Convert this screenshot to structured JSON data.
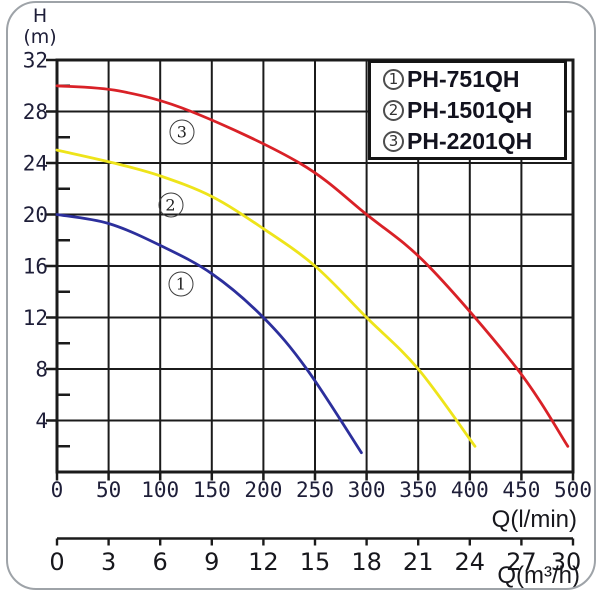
{
  "window": {
    "background": "#ffffff",
    "frame_border_color": "#9ea3a8"
  },
  "chart_data": {
    "type": "line",
    "title": "",
    "ylabel_title": "H",
    "ylabel_unit": "(m)",
    "xlabel_primary": "Q(l/min)",
    "xlabel_secondary": "Q(m³/h)",
    "grid": true,
    "grid_color": "#1b1b1b",
    "tick_text_color": "#1e1e38",
    "y_axis": {
      "unit": "m",
      "min": 0,
      "max": 32,
      "labeled_ticks": [
        4,
        8,
        12,
        16,
        20,
        24,
        28,
        32
      ],
      "minor_ticks": [
        2,
        6,
        10,
        14,
        18,
        22,
        26,
        30
      ]
    },
    "x_axis_primary": {
      "unit": "l/min",
      "min": 0,
      "max": 500,
      "ticks": [
        0,
        50,
        100,
        150,
        200,
        250,
        300,
        350,
        400,
        450,
        500
      ]
    },
    "x_axis_secondary": {
      "unit": "m³/h",
      "min": 0,
      "max": 30,
      "ticks": [
        0,
        3,
        6,
        9,
        12,
        15,
        18,
        21,
        24,
        27,
        30
      ]
    },
    "legend": {
      "position": "top-right",
      "border_color": "#141414"
    },
    "series": [
      {
        "marker": "1",
        "name": "PH-751QH",
        "color": "#2c2f9c",
        "points": [
          [
            0,
            20
          ],
          [
            50,
            19.3
          ],
          [
            100,
            17.6
          ],
          [
            150,
            15.4
          ],
          [
            200,
            12
          ],
          [
            242,
            8
          ],
          [
            295,
            1.5
          ]
        ]
      },
      {
        "marker": "2",
        "name": "PH-1501QH",
        "color": "#eee41a",
        "points": [
          [
            0,
            25
          ],
          [
            55,
            24
          ],
          [
            100,
            23
          ],
          [
            150,
            21.4
          ],
          [
            200,
            18.9
          ],
          [
            250,
            16
          ],
          [
            300,
            12
          ],
          [
            350,
            8
          ],
          [
            405,
            2
          ]
        ]
      },
      {
        "marker": "3",
        "name": "PH-2201QH",
        "color": "#d92127",
        "points": [
          [
            0,
            30
          ],
          [
            60,
            29.6
          ],
          [
            130,
            28
          ],
          [
            235,
            24
          ],
          [
            300,
            20
          ],
          [
            360,
            16
          ],
          [
            446,
            8
          ],
          [
            495,
            2
          ]
        ]
      }
    ],
    "curve_labels": [
      {
        "marker": "1",
        "q": 120,
        "h": 14.6
      },
      {
        "marker": "2",
        "q": 110,
        "h": 20.7
      },
      {
        "marker": "3",
        "q": 121,
        "h": 26.4
      }
    ]
  }
}
